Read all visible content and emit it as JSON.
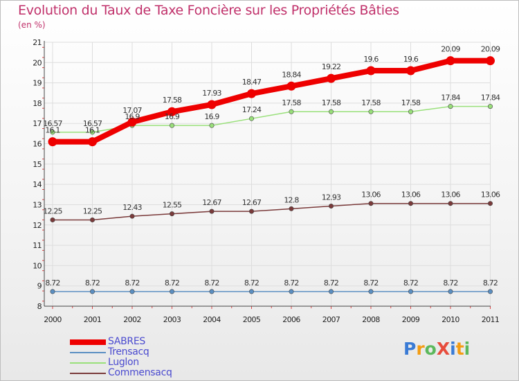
{
  "chart_data": {
    "type": "line",
    "title": "Evolution du Taux de Taxe Foncière sur les Propriétés Bâties",
    "unit_label": "(en %)",
    "x": [
      "2000",
      "2001",
      "2002",
      "2003",
      "2004",
      "2005",
      "2006",
      "2007",
      "2008",
      "2009",
      "2010",
      "2011"
    ],
    "ylim": [
      8,
      21
    ],
    "y_ticks": [
      8,
      9,
      10,
      11,
      12,
      13,
      14,
      15,
      16,
      17,
      18,
      19,
      20,
      21
    ],
    "series": [
      {
        "name": "SABRES",
        "color": "#ee0000",
        "width": "thick",
        "values": [
          16.1,
          16.1,
          17.07,
          17.58,
          17.93,
          18.47,
          18.84,
          19.22,
          19.6,
          19.6,
          20.09,
          20.09
        ],
        "labels": [
          "16.1",
          "16.1",
          "17.07",
          "17.58",
          "17.93",
          "18.47",
          "18.84",
          "19.22",
          "19.6",
          "19.6",
          "20.09",
          "20.09"
        ]
      },
      {
        "name": "Trensacq",
        "color": "#5b8fc2",
        "width": "thin",
        "values": [
          8.72,
          8.72,
          8.72,
          8.72,
          8.72,
          8.72,
          8.72,
          8.72,
          8.72,
          8.72,
          8.72,
          8.72
        ],
        "labels": [
          "8.72",
          "8.72",
          "8.72",
          "8.72",
          "8.72",
          "8.72",
          "8.72",
          "8.72",
          "8.72",
          "8.72",
          "8.72",
          "8.72"
        ]
      },
      {
        "name": "Luglon",
        "color": "#99e07a",
        "width": "thin",
        "values": [
          16.57,
          16.57,
          16.9,
          16.9,
          16.9,
          17.24,
          17.58,
          17.58,
          17.58,
          17.58,
          17.84,
          17.84
        ],
        "labels": [
          "16.57",
          "16.57",
          "16.9",
          "16.9",
          "16.9",
          "17.24",
          "17.58",
          "17.58",
          "17.58",
          "17.58",
          "17.84",
          "17.84"
        ]
      },
      {
        "name": "Commensacq",
        "color": "#7a3a3a",
        "width": "thin",
        "values": [
          12.25,
          12.25,
          12.43,
          12.55,
          12.67,
          12.67,
          12.8,
          12.93,
          13.06,
          13.06,
          13.06,
          13.06
        ],
        "labels": [
          "12.25",
          "12.25",
          "12.43",
          "12.55",
          "12.67",
          "12.67",
          "12.8",
          "12.93",
          "13.06",
          "13.06",
          "13.06",
          "13.06"
        ]
      }
    ]
  },
  "logo": {
    "text": "ProXiti",
    "letters": [
      "P",
      "r",
      "o",
      "X",
      "i",
      "t",
      "i"
    ],
    "colors": [
      "#3a7bd5",
      "#f39c12",
      "#5cb85c",
      "#e74c3c",
      "#3a7bd5",
      "#f39c12",
      "#5cb85c"
    ]
  }
}
